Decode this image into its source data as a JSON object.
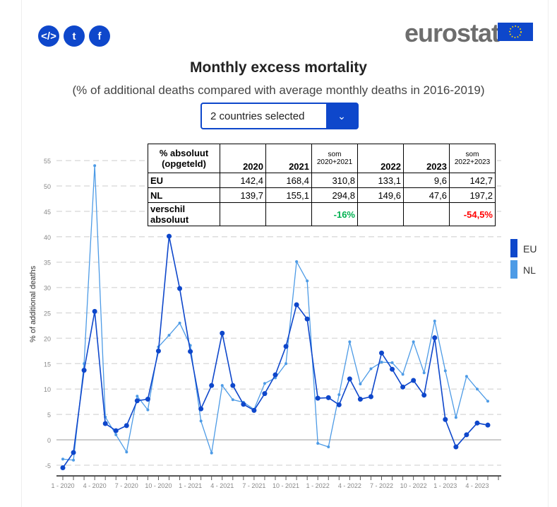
{
  "share": {
    "embed": "</>",
    "twitter": "t",
    "facebook": "f"
  },
  "logo": "eurostat",
  "title": "Monthly excess mortality",
  "subtitle": "(% of additional deaths compared with average monthly deaths in 2016-2019)",
  "selector": {
    "value": "2 countries selected"
  },
  "table": {
    "header": [
      "% absoluut (opgeteld)",
      "2020",
      "2021",
      "som 2020+2021",
      "2022",
      "2023",
      "som 2022+2023"
    ],
    "rows": [
      {
        "label": "EU",
        "values": [
          "142,4",
          "168,4",
          "310,8",
          "133,1",
          "9,6",
          "142,7"
        ]
      },
      {
        "label": "NL",
        "values": [
          "139,7",
          "155,1",
          "294,8",
          "149,6",
          "47,6",
          "197,2"
        ]
      },
      {
        "label": "verschil absoluut",
        "values": [
          "",
          "",
          "-16%",
          "",
          "",
          "-54,5%"
        ]
      }
    ],
    "colors": {
      "green": "#00b050",
      "red": "#ff0000"
    }
  },
  "chart_data": {
    "type": "line",
    "title": "Monthly excess mortality",
    "ylabel": "% of additional deaths",
    "ylim": [
      -7,
      56
    ],
    "yticks": [
      -5,
      0,
      5,
      10,
      15,
      20,
      25,
      30,
      35,
      40,
      45,
      50,
      55
    ],
    "xtick_labels": [
      "1 - 2020",
      "4 - 2020",
      "7 - 2020",
      "10 - 2020",
      "1 - 2021",
      "4 - 2021",
      "7 - 2021",
      "10 - 2021",
      "1 - 2022",
      "4 - 2022",
      "7 - 2022",
      "10 - 2022",
      "1 - 2023",
      "4 - 2023"
    ],
    "legend": "right",
    "series": [
      {
        "name": "EU",
        "color": "#0e47cb",
        "values": [
          -5.5,
          -2.5,
          13.7,
          25.3,
          3.2,
          1.8,
          2.8,
          7.7,
          8.0,
          17.5,
          40.1,
          29.8,
          17.4,
          6.1,
          10.7,
          21.0,
          10.7,
          7.0,
          5.8,
          9.1,
          12.8,
          18.4,
          26.6,
          23.8,
          8.2,
          8.3,
          6.9,
          12.0,
          8.0,
          8.5,
          17.1,
          13.9,
          10.4,
          11.7,
          8.8,
          20.1,
          4.0,
          -1.4,
          1.0,
          3.3,
          2.9
        ]
      },
      {
        "name": "NL",
        "color": "#4d9be6",
        "values": [
          -3.8,
          -4.0,
          15.0,
          54.0,
          4.5,
          1.0,
          -2.4,
          8.6,
          5.9,
          18.3,
          20.6,
          23.0,
          18.6,
          3.7,
          -2.6,
          10.7,
          7.9,
          7.4,
          6.0,
          11.1,
          12.2,
          15.0,
          35.1,
          31.3,
          -0.7,
          -1.4,
          8.9,
          19.3,
          11.0,
          14.0,
          15.3,
          15.2,
          12.9,
          19.3,
          13.2,
          23.4,
          13.6,
          4.4,
          12.5,
          10.0,
          7.6
        ]
      }
    ]
  }
}
